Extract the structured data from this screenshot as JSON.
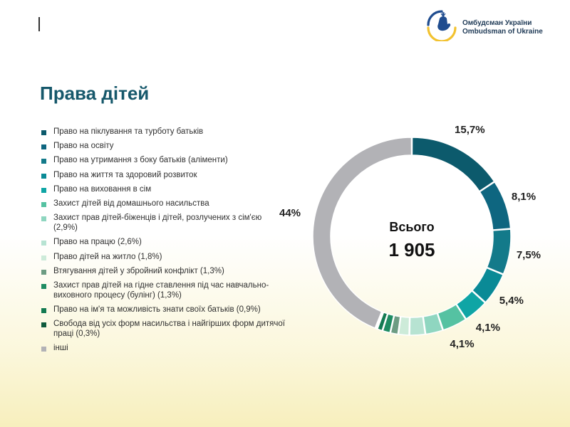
{
  "brand": {
    "line1": "Омбудсман України",
    "line2": "Ombudsman of Ukraine"
  },
  "page": {
    "title": "Права дітей"
  },
  "chart_data": {
    "type": "pie",
    "center_title": "Всього",
    "total": "1 905",
    "legend_position": "left",
    "categories": [
      "Право на піклування та турботу батьків",
      "Право на освіту",
      "Право на утримання з боку батьків (аліменти)",
      "Право на життя та здоровий розвиток",
      "Право на виховання в сім",
      "Захист дітей від домашнього насильства",
      "Захист прав дітей-біженців і дітей, розлучених з сім'єю (2,9%)",
      "Право на працю (2,6%)",
      "Право дітей на житло (1,8%)",
      "Втягування дітей у збройний конфлікт (1,3%)",
      "Захист прав дітей на гідне ставлення під час навчально-виховного процесу (булінг) (1,3%)",
      "Право на ім'я та можливість знати своїх батьків (0,9%)",
      "Свобода від усіх форм насильства і найгірших форм дитячої праці (0,3%)",
      "інші"
    ],
    "values": [
      15.7,
      8.1,
      7.5,
      5.4,
      4.1,
      4.1,
      2.9,
      2.6,
      1.8,
      1.3,
      1.3,
      0.9,
      0.3,
      44
    ],
    "colors": [
      "#0c5a6c",
      "#0e6680",
      "#137a8a",
      "#0a8a96",
      "#0fa5a5",
      "#55c2a2",
      "#8fd6c0",
      "#b7e3d2",
      "#cdebd9",
      "#6d9c83",
      "#1e8c62",
      "#137a52",
      "#0f5a3c",
      "#b2b2b6"
    ],
    "data_labels": [
      "15,7%",
      "8,1%",
      "7,5%",
      "5,4%",
      "4,1%",
      "4,1%",
      "",
      "",
      "",
      "",
      "",
      "",
      "",
      "44%"
    ]
  }
}
